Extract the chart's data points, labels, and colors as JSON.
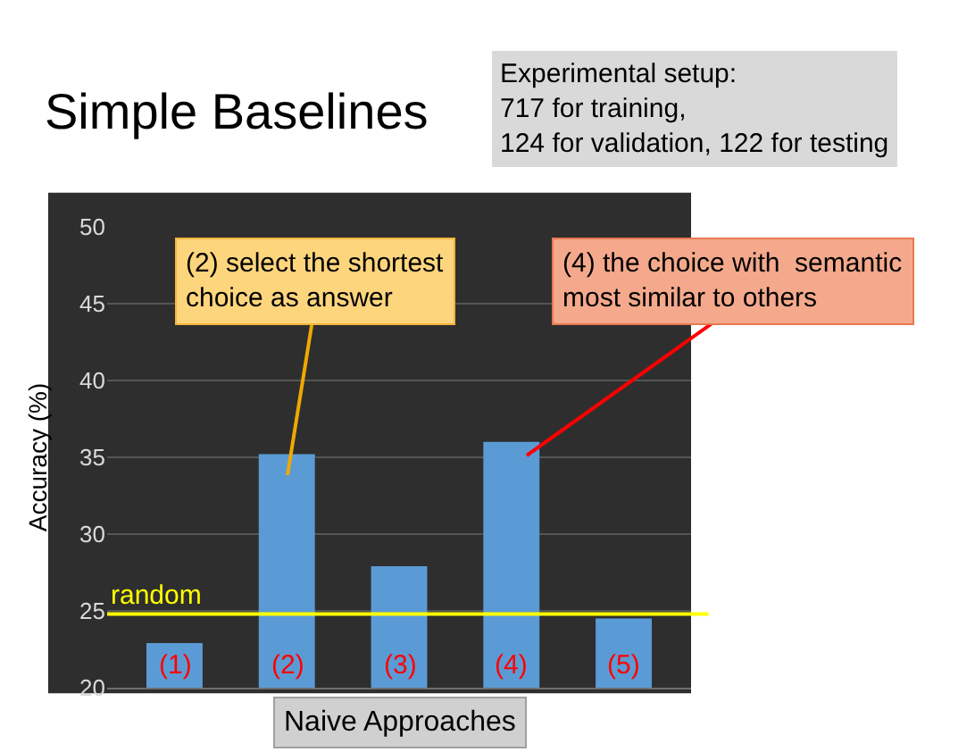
{
  "chart_data": {
    "type": "bar",
    "title": "Simple Baselines",
    "xlabel": "Naive Approaches",
    "ylabel": "Accuracy (%)",
    "categories": [
      "(1)",
      "(2)",
      "(3)",
      "(4)",
      "(5)"
    ],
    "values": [
      22.9,
      35.2,
      27.9,
      36.0,
      24.5
    ],
    "color": "#5b9bd5",
    "ylim": [
      20,
      50
    ],
    "yticks": [
      20,
      25,
      30,
      35,
      40,
      45,
      50
    ],
    "grid": "y",
    "ref_lines": [
      {
        "axis": "y",
        "value": 24.8,
        "label": "random",
        "color": "#ffff00"
      }
    ],
    "annotations": [
      "Experimental setup:\n717 for training,\n124 for validation, 122 for testing",
      "(2) select the shortest\nchoice as answer",
      "(4) the choice with  semantic\nmost similar to others"
    ]
  }
}
